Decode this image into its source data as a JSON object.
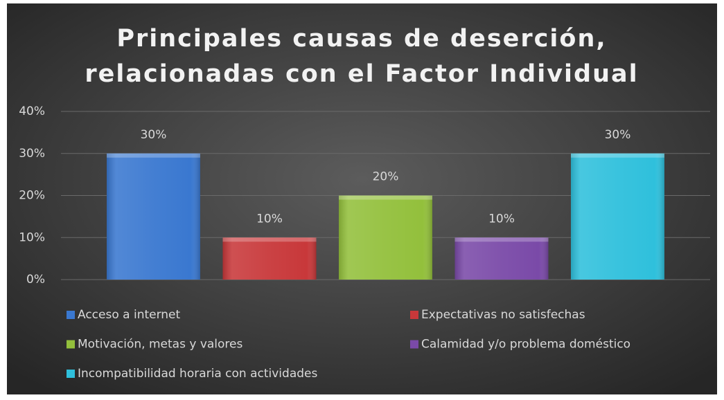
{
  "chart_data": {
    "type": "bar",
    "title": [
      "Principales causas de deserción,",
      "relacionadas con el Factor Individual"
    ],
    "series": [
      {
        "name": "Acceso a internet",
        "color": "#3a78d0",
        "values": [
          30
        ],
        "value_labels": [
          "30%"
        ]
      },
      {
        "name": "Expectativas no satisfechas",
        "color": "#c8383a",
        "values": [
          10
        ],
        "value_labels": [
          "10%"
        ]
      },
      {
        "name": "Motivación, metas y valores",
        "color": "#93c03c",
        "values": [
          20
        ],
        "value_labels": [
          "20%"
        ]
      },
      {
        "name": "Calamidad y/o problema doméstico",
        "color": "#7a4aa8",
        "values": [
          10
        ],
        "value_labels": [
          "10%"
        ]
      },
      {
        "name": "Incompatibilidad horaria con actividades",
        "color": "#2fc0dc",
        "values": [
          30
        ],
        "value_labels": [
          "30%"
        ]
      }
    ],
    "ylim": [
      0,
      40
    ],
    "yticks": [
      {
        "value": 0,
        "label": "0%"
      },
      {
        "value": 10,
        "label": "10%"
      },
      {
        "value": 20,
        "label": "20%"
      },
      {
        "value": 30,
        "label": "30%"
      },
      {
        "value": 40,
        "label": "40%"
      }
    ],
    "grid": true
  }
}
